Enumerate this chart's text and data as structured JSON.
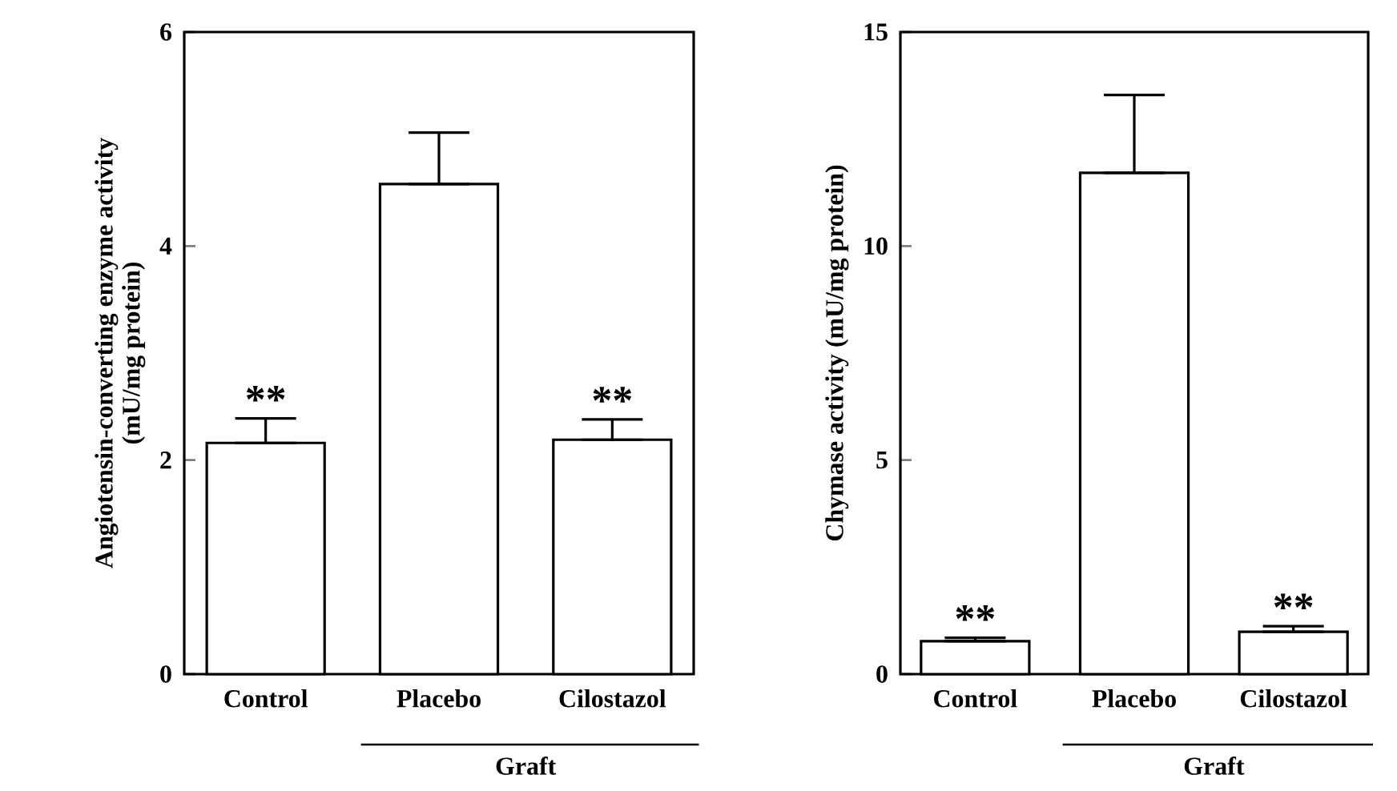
{
  "chart_data": [
    {
      "type": "bar",
      "ylabel": "Angiotensin-converting enzyme activity\n(mU/mg protein)",
      "categories": [
        "Control",
        "Placebo",
        "Cilostazol"
      ],
      "values": [
        2.16,
        4.58,
        2.19
      ],
      "errors": [
        [
          2.16,
          2.39
        ],
        [
          4.58,
          5.06
        ],
        [
          2.19,
          2.38
        ]
      ],
      "color": "#ffffff",
      "ylim": [
        0,
        6
      ],
      "yticks": [
        0,
        2,
        4,
        6
      ],
      "annotations": [
        {
          "text": "**",
          "x": "Control",
          "y": 2.39
        },
        {
          "text": "**",
          "x": "Cilostazol",
          "y": 2.38
        },
        "Graft"
      ]
    },
    {
      "type": "bar",
      "ylabel": "Chymase activity (mU/mg protein)",
      "categories": [
        "Control",
        "Placebo",
        "Cilostazol"
      ],
      "values": [
        0.77,
        11.71,
        0.99
      ],
      "errors": [
        [
          0.77,
          0.85
        ],
        [
          11.71,
          13.53
        ],
        [
          0.99,
          1.12
        ]
      ],
      "color": "#ffffff",
      "ylim": [
        0,
        15
      ],
      "yticks": [
        0,
        5,
        10,
        15
      ],
      "annotations": [
        {
          "text": "**",
          "x": "Control",
          "y": 0.85
        },
        {
          "text": "**",
          "x": "Cilostazol",
          "y": 1.12
        },
        "Graft"
      ]
    }
  ]
}
